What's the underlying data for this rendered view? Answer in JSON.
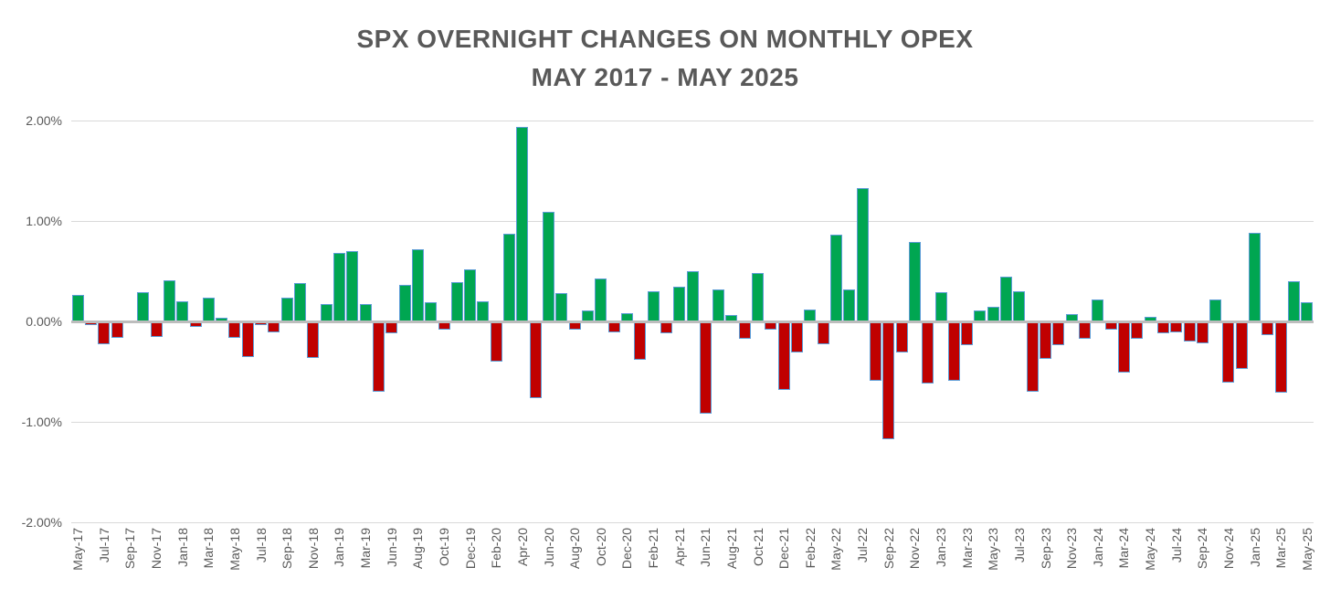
{
  "header": {
    "title_line1": "SPX OVERNIGHT CHANGES ON MONTHLY OPEX",
    "title_line2": "MAY 2017 - MAY 2025"
  },
  "colors": {
    "positive_bar": "#00a651",
    "negative_bar": "#c00000",
    "bar_border": "#5b9bd5",
    "zero_axis_line": "#bdbdbd",
    "gridline": "#d9d9d9",
    "text": "#595959"
  },
  "chart_data": {
    "type": "bar",
    "title": "SPX OVERNIGHT CHANGES ON MONTHLY OPEX MAY 2017 - MAY 2025",
    "unit": "%",
    "ylim": [
      -2,
      2
    ],
    "grid": true,
    "legend": false,
    "y_ticks": [
      {
        "label": "2.00%",
        "value": 2
      },
      {
        "label": "1.00%",
        "value": 1
      },
      {
        "label": "0.00%",
        "value": 0
      },
      {
        "label": "-1.00%",
        "value": -1
      },
      {
        "label": "-2.00%",
        "value": -2
      }
    ],
    "x_label_every": 2,
    "x_tick_labels": [
      "May-17",
      "Jul-17",
      "Sep-17",
      "Nov-17",
      "Jan-18",
      "Mar-18",
      "May-18",
      "Jul-18",
      "Sep-18",
      "Nov-18",
      "Jan-19",
      "Mar-19",
      "Jun-19",
      "Aug-19",
      "Oct-19",
      "Dec-19",
      "Feb-20",
      "Apr-20",
      "Jun-20",
      "Aug-20",
      "Oct-20",
      "Dec-20",
      "Feb-21",
      "Apr-21",
      "Jun-21",
      "Aug-21",
      "Oct-21",
      "Dec-21",
      "Feb-22",
      "May-22",
      "Jul-22",
      "Sep-22",
      "Nov-22",
      "Jan-23",
      "Mar-23",
      "May-23",
      "Jul-23",
      "Sep-23",
      "Nov-23",
      "Jan-24",
      "Mar-24",
      "May-24",
      "Jul-24",
      "Sep-24",
      "Nov-24",
      "Jan-25",
      "Mar-25",
      "May-25"
    ],
    "values": [
      0.26,
      -0.04,
      -0.23,
      -0.16,
      -0.02,
      0.29,
      -0.15,
      0.41,
      0.2,
      -0.05,
      0.24,
      0.04,
      -0.16,
      -0.35,
      -0.04,
      -0.11,
      0.24,
      0.38,
      -0.36,
      0.17,
      0.68,
      0.7,
      0.17,
      -0.7,
      -0.12,
      0.36,
      0.72,
      0.19,
      -0.08,
      0.39,
      0.52,
      0.2,
      -0.4,
      0.87,
      1.94,
      -0.76,
      1.09,
      0.28,
      -0.08,
      0.11,
      0.43,
      -0.11,
      0.08,
      -0.38,
      0.3,
      -0.12,
      0.35,
      0.5,
      -0.92,
      0.32,
      0.06,
      -0.17,
      0.48,
      -0.08,
      -0.68,
      -0.31,
      0.12,
      -0.23,
      0.86,
      0.32,
      1.33,
      -0.59,
      -1.17,
      -0.31,
      0.79,
      -0.62,
      0.29,
      -0.59,
      -0.24,
      0.11,
      0.15,
      0.45,
      0.3,
      -0.7,
      -0.37,
      -0.24,
      0.07,
      -0.17,
      0.22,
      -0.08,
      -0.51,
      -0.17,
      0.05,
      -0.12,
      -0.11,
      -0.2,
      -0.22,
      0.22,
      -0.61,
      -0.47,
      0.88,
      -0.14,
      -0.71,
      0.4,
      0.19
    ]
  }
}
